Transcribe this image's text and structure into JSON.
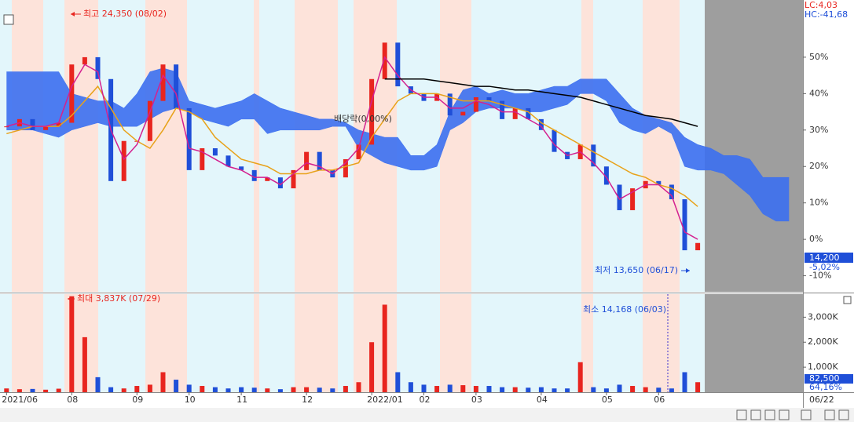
{
  "chart_data": {
    "type": "stock",
    "categories": [
      "2021/06",
      null,
      null,
      null,
      null,
      "08",
      null,
      null,
      null,
      null,
      "09",
      null,
      null,
      null,
      "10",
      null,
      null,
      null,
      "11",
      null,
      null,
      null,
      null,
      "12",
      null,
      null,
      null,
      null,
      "2022/01",
      null,
      null,
      null,
      "02",
      null,
      null,
      null,
      "03",
      null,
      null,
      null,
      null,
      "04",
      null,
      null,
      null,
      null,
      "05",
      null,
      null,
      null,
      "06",
      null,
      null,
      null,
      null,
      null,
      null,
      null,
      null,
      null,
      null
    ],
    "x_end_label": "06/22",
    "ylim": [
      -14.4,
      65.7
    ],
    "yticks": [
      {
        "value": 50,
        "label": "50%"
      },
      {
        "value": 40,
        "label": "40%"
      },
      {
        "value": 30,
        "label": "30%"
      },
      {
        "value": 20,
        "label": "20%"
      },
      {
        "value": 10,
        "label": "10%"
      },
      {
        "value": 0,
        "label": "0%"
      },
      {
        "value": -10,
        "label": "-10%"
      }
    ],
    "series": [
      {
        "role": "price",
        "up_color": "#e8251f",
        "down_color": "#1f4fd8",
        "values": [
          31,
          33,
          30,
          31,
          32,
          48,
          50,
          44,
          16,
          27,
          27,
          38,
          48,
          36,
          19,
          25,
          23,
          20,
          19,
          16,
          17,
          14,
          19,
          24,
          19,
          17,
          22,
          26,
          44,
          54,
          42,
          40,
          38,
          40,
          34,
          35,
          39,
          38,
          33,
          36,
          33,
          30,
          24,
          22,
          26,
          20,
          15,
          8,
          14,
          16,
          15,
          11,
          -3,
          -1,
          null,
          null,
          null,
          null,
          null,
          null,
          null
        ]
      },
      {
        "role": "ma-short",
        "color": "#d4208f",
        "values": [
          31,
          32,
          31,
          31,
          32,
          42,
          48,
          46,
          30,
          22,
          26,
          35,
          45,
          40,
          25,
          24,
          22,
          20,
          19,
          17,
          17,
          15,
          18,
          21,
          20,
          18,
          21,
          25,
          38,
          50,
          45,
          41,
          39,
          39,
          36,
          36,
          38,
          37,
          35,
          35,
          33,
          31,
          26,
          23,
          24,
          21,
          17,
          11,
          13,
          15,
          15,
          12,
          2,
          0,
          null,
          null,
          null,
          null,
          null,
          null,
          null
        ]
      },
      {
        "role": "ma-long",
        "color": "#e8a21a",
        "values": [
          29,
          30,
          31,
          31,
          31,
          34,
          38,
          42,
          36,
          30,
          27,
          25,
          30,
          36,
          35,
          33,
          28,
          25,
          22,
          21,
          20,
          18,
          18,
          18,
          19,
          19,
          20,
          21,
          28,
          33,
          38,
          40,
          40,
          40,
          39,
          38,
          38,
          38,
          37,
          36,
          35,
          32,
          30,
          28,
          26,
          24,
          22,
          20,
          18,
          17,
          15,
          14,
          12,
          9,
          null,
          null,
          null,
          null,
          null,
          null,
          null
        ]
      },
      {
        "role": "trend",
        "color": "#000000",
        "values": [
          null,
          null,
          null,
          null,
          null,
          null,
          null,
          null,
          null,
          null,
          null,
          null,
          null,
          null,
          null,
          null,
          null,
          null,
          null,
          null,
          null,
          null,
          null,
          null,
          null,
          null,
          null,
          null,
          null,
          44,
          44,
          44,
          44,
          43.5,
          43,
          42.5,
          42,
          42,
          41.5,
          41,
          41,
          40.5,
          40,
          39.5,
          39,
          38,
          37,
          36,
          35,
          34,
          33.5,
          33,
          32,
          31,
          null,
          null,
          null,
          null,
          null,
          null,
          null
        ]
      },
      {
        "role": "cloud-upper",
        "color": "#3b6ff0",
        "values": [
          46,
          46,
          46,
          46,
          46,
          40,
          39,
          38,
          38,
          36,
          40,
          46,
          47,
          46,
          38,
          37,
          36,
          37,
          38,
          40,
          38,
          36,
          35,
          34,
          33,
          33,
          32,
          30,
          29,
          28,
          28,
          23,
          23,
          26,
          35,
          41,
          42,
          40,
          41,
          40,
          40,
          41,
          42,
          42,
          44,
          44,
          44,
          40,
          36,
          34,
          33,
          32,
          28,
          26,
          25,
          23,
          23,
          22,
          17,
          17,
          17
        ]
      },
      {
        "role": "cloud-lower",
        "color": "#3b6ff0",
        "values": [
          30,
          30,
          30,
          29,
          28,
          30,
          31,
          32,
          31,
          31,
          31,
          33,
          35,
          36,
          35,
          33,
          32,
          31,
          33,
          33,
          29,
          30,
          30,
          30,
          30,
          31,
          31,
          25,
          23,
          21,
          20,
          19,
          19,
          20,
          30,
          32,
          35,
          36,
          36,
          36,
          35,
          35,
          36,
          37,
          40,
          40,
          38,
          32,
          30,
          29,
          31,
          29,
          20,
          19,
          19,
          18,
          15,
          12,
          7,
          5,
          5
        ]
      }
    ],
    "volume": {
      "ylim": [
        0,
        3890
      ],
      "yticks": [
        {
          "value": 3000,
          "label": "3,000K"
        },
        {
          "value": 2000,
          "label": "2,000K"
        },
        {
          "value": 1000,
          "label": "1,000K"
        }
      ],
      "values": [
        150,
        120,
        130,
        100,
        140,
        3837,
        2200,
        600,
        200,
        150,
        250,
        300,
        800,
        500,
        300,
        250,
        200,
        150,
        200,
        180,
        150,
        120,
        200,
        200,
        180,
        150,
        250,
        400,
        2000,
        3500,
        800,
        400,
        300,
        250,
        300,
        280,
        250,
        250,
        200,
        200,
        180,
        200,
        150,
        150,
        1200,
        200,
        150,
        300,
        250,
        200,
        180,
        150,
        800,
        400,
        null,
        null,
        null,
        null,
        null,
        null,
        null
      ],
      "current_label": "82,500",
      "current_pct_label": "64,16%"
    },
    "lc_label": "LC:4,03",
    "hc_label": "HC:-41,68",
    "current_price_label": "14,200",
    "current_change_label": "-5,02%",
    "annotations": [
      {
        "text": "최고 24,350 (08/02)",
        "color": "#e8251f"
      },
      {
        "text": "최저 13,650 (06/17)",
        "color": "#1f4fd8"
      },
      {
        "text": "배당락(0,00%)",
        "color": "#333333"
      },
      {
        "text": "최대 3,837K (07/29)",
        "color": "#e8251f"
      },
      {
        "text": "최소 14,168 (06/03)",
        "color": "#1f4fd8"
      }
    ]
  }
}
